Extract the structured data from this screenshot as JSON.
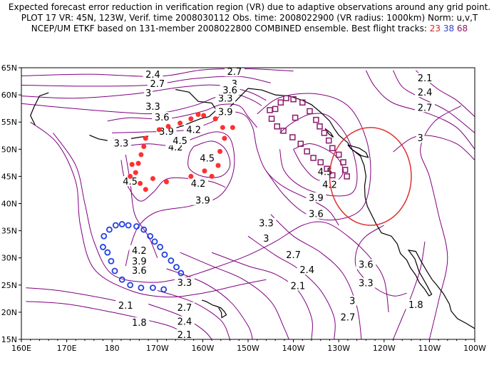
{
  "title": {
    "line1": "Expected forecast error reduction in verification region (VR) due to adaptive observations around any grid point.",
    "line2": "PLOT 17 VR: 45N, 123W, Verif. time 2008030112 Obs. time: 2008022900 (VR radius: 1000km) Norm: u,v,T",
    "line3_prefix": "NCEP/UM ETKF based on 131-member 2008022800 COMBINED ensemble.  Best flight tracks:",
    "track1": "23",
    "track2": "38",
    "track3": "68"
  },
  "axes": {
    "x_ticks": [
      "160E",
      "170E",
      "180",
      "170W",
      "160W",
      "150W",
      "140W",
      "130W",
      "120W",
      "110W",
      "100W"
    ],
    "y_ticks": [
      "15N",
      "20N",
      "25N",
      "30N",
      "35N",
      "40N",
      "45N",
      "50N",
      "55N",
      "60N",
      "65N"
    ]
  },
  "colors": {
    "contour": "#800080",
    "coast": "#000000",
    "track1": "#ff3030",
    "track2": "#2040e0",
    "track3": "#8a1a6a",
    "verif_circle": "#e03030"
  },
  "contour_labels": [
    {
      "text": "2.4",
      "lon": -171,
      "lat": 63.7
    },
    {
      "text": "2.7",
      "lon": -170,
      "lat": 62.0
    },
    {
      "text": "3",
      "lon": -172,
      "lat": 60.3
    },
    {
      "text": "2.7",
      "lon": -153,
      "lat": 64.2
    },
    {
      "text": "3",
      "lon": -153,
      "lat": 62.0
    },
    {
      "text": "3.3",
      "lon": -155,
      "lat": 59.3
    },
    {
      "text": "3.6",
      "lon": -154,
      "lat": 60.8
    },
    {
      "text": "3.9",
      "lon": -155,
      "lat": 56.8
    },
    {
      "text": "3.3",
      "lon": -171,
      "lat": 57.8
    },
    {
      "text": "3.6",
      "lon": -169,
      "lat": 55.8
    },
    {
      "text": "3.9",
      "lon": -168,
      "lat": 53.2
    },
    {
      "text": "4.2",
      "lon": -166,
      "lat": 50.3
    },
    {
      "text": "4.5",
      "lon": -159,
      "lat": 48.3
    },
    {
      "text": "4.2",
      "lon": -161,
      "lat": 43.6
    },
    {
      "text": "3.9",
      "lon": -160,
      "lat": 40.5
    },
    {
      "text": "4.2",
      "lon": -162,
      "lat": 53.5
    },
    {
      "text": "4.5",
      "lon": -165,
      "lat": 51.5
    },
    {
      "text": "3.3",
      "lon": -178,
      "lat": 51.0
    },
    {
      "text": "4.5",
      "lon": -176,
      "lat": 44.0
    },
    {
      "text": "4.2",
      "lon": -174,
      "lat": 31.3
    },
    {
      "text": "3.9",
      "lon": -174,
      "lat": 29.3
    },
    {
      "text": "3.6",
      "lon": -174,
      "lat": 27.6
    },
    {
      "text": "3.3",
      "lon": -164,
      "lat": 25.4
    },
    {
      "text": "2.7",
      "lon": -164,
      "lat": 20.8
    },
    {
      "text": "2.4",
      "lon": -164,
      "lat": 18.2
    },
    {
      "text": "2.1",
      "lon": -164,
      "lat": 15.8
    },
    {
      "text": "2.1",
      "lon": -177,
      "lat": 21.2
    },
    {
      "text": "1.8",
      "lon": -174,
      "lat": 18.0
    },
    {
      "text": "4.5",
      "lon": -133,
      "lat": 45.8
    },
    {
      "text": "4.2",
      "lon": -132,
      "lat": 43.4
    },
    {
      "text": "3.9",
      "lon": -135,
      "lat": 41.0
    },
    {
      "text": "3.6",
      "lon": -135,
      "lat": 38.0
    },
    {
      "text": "3.3",
      "lon": -146,
      "lat": 36.3
    },
    {
      "text": "3",
      "lon": -146,
      "lat": 33.5
    },
    {
      "text": "2.7",
      "lon": -140,
      "lat": 30.5
    },
    {
      "text": "2.4",
      "lon": -137,
      "lat": 27.7
    },
    {
      "text": "2.1",
      "lon": -139,
      "lat": 24.8
    },
    {
      "text": "3.6",
      "lon": -124,
      "lat": 28.7
    },
    {
      "text": "3.3",
      "lon": -124,
      "lat": 25.3
    },
    {
      "text": "3",
      "lon": -127,
      "lat": 22.0
    },
    {
      "text": "2.7",
      "lon": -128,
      "lat": 19.0
    },
    {
      "text": "1.8",
      "lon": -113,
      "lat": 21.3
    },
    {
      "text": "3",
      "lon": -112,
      "lat": 52.0
    },
    {
      "text": "2.7",
      "lon": -111,
      "lat": 57.6
    },
    {
      "text": "2.4",
      "lon": -111,
      "lat": 60.4
    },
    {
      "text": "2.1",
      "lon": -111,
      "lat": 63.0
    }
  ],
  "track_red": [
    [
      -172.6,
      52.0
    ],
    [
      -173.0,
      50.5
    ],
    [
      -173.6,
      49.0
    ],
    [
      -174.2,
      47.4
    ],
    [
      -174.8,
      45.7
    ],
    [
      -175.6,
      47.2
    ],
    [
      -176.0,
      45.0
    ],
    [
      -173.8,
      43.7
    ],
    [
      -172.6,
      42.6
    ],
    [
      -169.6,
      53.6
    ],
    [
      -167.6,
      54.2
    ],
    [
      -165.0,
      54.8
    ],
    [
      -162.6,
      55.6
    ],
    [
      -161.0,
      56.4
    ],
    [
      -159.8,
      56.2
    ],
    [
      -157.2,
      55.6
    ],
    [
      -155.6,
      54.0
    ],
    [
      -155.2,
      52.0
    ],
    [
      -156.2,
      49.6
    ],
    [
      -156.6,
      47.0
    ],
    [
      -158.0,
      45.0
    ],
    [
      -159.6,
      46.0
    ],
    [
      -162.6,
      45.0
    ],
    [
      -168.0,
      44.0
    ],
    [
      -171.0,
      44.6
    ],
    [
      -153.4,
      54.0
    ]
  ],
  "track_blue": [
    [
      -182.0,
      32.0
    ],
    [
      -181.8,
      34.0
    ],
    [
      -180.6,
      35.2
    ],
    [
      -179.2,
      36.0
    ],
    [
      -177.8,
      36.2
    ],
    [
      -176.4,
      36.0
    ],
    [
      -174.6,
      35.8
    ],
    [
      -173.0,
      35.2
    ],
    [
      -171.6,
      34.0
    ],
    [
      -170.6,
      33.0
    ],
    [
      -169.4,
      32.0
    ],
    [
      -168.4,
      30.6
    ],
    [
      -167.0,
      29.5
    ],
    [
      -165.8,
      28.3
    ],
    [
      -164.8,
      27.2
    ],
    [
      -181.0,
      31.0
    ],
    [
      -180.2,
      29.4
    ],
    [
      -179.4,
      27.6
    ],
    [
      -177.8,
      26.0
    ],
    [
      -176.0,
      25.0
    ],
    [
      -173.6,
      24.5
    ],
    [
      -171.0,
      24.5
    ],
    [
      -168.6,
      24.2
    ]
  ],
  "track_purple": [
    [
      -144.0,
      57.4
    ],
    [
      -142.8,
      58.6
    ],
    [
      -141.6,
      59.4
    ],
    [
      -140.0,
      59.2
    ],
    [
      -138.0,
      58.6
    ],
    [
      -136.4,
      57.0
    ],
    [
      -135.0,
      55.4
    ],
    [
      -134.2,
      54.2
    ],
    [
      -133.2,
      53.0
    ],
    [
      -132.2,
      51.6
    ],
    [
      -131.4,
      50.2
    ],
    [
      -130.0,
      49.0
    ],
    [
      -129.0,
      47.6
    ],
    [
      -128.6,
      46.2
    ],
    [
      -128.2,
      45.0
    ],
    [
      -144.8,
      55.6
    ],
    [
      -143.6,
      54.2
    ],
    [
      -142.2,
      53.4
    ],
    [
      -140.2,
      52.2
    ],
    [
      -138.4,
      51.0
    ],
    [
      -137.0,
      49.6
    ],
    [
      -135.6,
      48.4
    ],
    [
      -134.0,
      47.6
    ],
    [
      -132.6,
      46.4
    ],
    [
      -131.4,
      45.2
    ],
    [
      -145.2,
      57.2
    ],
    [
      -139.6,
      55.8
    ]
  ],
  "verif_circle": {
    "lon": -123,
    "lat": 45,
    "radius_deg": 9.0
  }
}
